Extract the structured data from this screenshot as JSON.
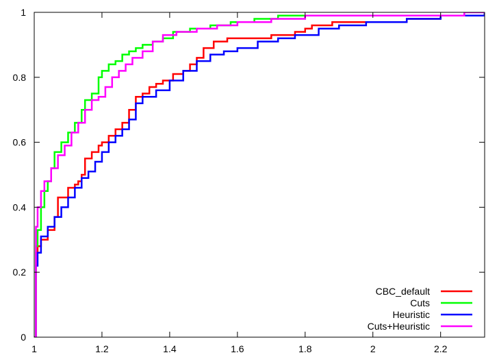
{
  "chart_data": {
    "type": "line",
    "title": "",
    "xlabel": "",
    "ylabel": "",
    "xlim": [
      1,
      2.33
    ],
    "ylim": [
      0,
      1
    ],
    "x_ticks": [
      "1",
      "1.2",
      "1.4",
      "1.6",
      "1.8",
      "2",
      "2.2"
    ],
    "y_ticks": [
      "0",
      "0.2",
      "0.4",
      "0.6",
      "0.8",
      "1"
    ],
    "grid": false,
    "legend_position": "bottom-right",
    "step": true,
    "series": [
      {
        "name": "CBC_default",
        "color": "#ff0000",
        "x": [
          1.0,
          1.005,
          1.01,
          1.02,
          1.04,
          1.06,
          1.07,
          1.1,
          1.12,
          1.13,
          1.14,
          1.15,
          1.17,
          1.19,
          1.2,
          1.22,
          1.24,
          1.26,
          1.28,
          1.3,
          1.32,
          1.34,
          1.36,
          1.38,
          1.41,
          1.44,
          1.46,
          1.48,
          1.5,
          1.53,
          1.57,
          1.62,
          1.7,
          1.77,
          1.8,
          1.82,
          1.84,
          1.88,
          2.0,
          2.1,
          2.2,
          2.33
        ],
        "y": [
          0.0,
          0.26,
          0.28,
          0.3,
          0.33,
          0.37,
          0.43,
          0.46,
          0.47,
          0.48,
          0.5,
          0.55,
          0.57,
          0.59,
          0.6,
          0.62,
          0.64,
          0.66,
          0.7,
          0.74,
          0.75,
          0.77,
          0.78,
          0.79,
          0.81,
          0.82,
          0.84,
          0.86,
          0.89,
          0.91,
          0.92,
          0.92,
          0.93,
          0.94,
          0.95,
          0.96,
          0.96,
          0.97,
          0.97,
          0.98,
          0.99,
          1.0
        ]
      },
      {
        "name": "Cuts",
        "color": "#00ff00",
        "x": [
          1.0,
          1.005,
          1.01,
          1.02,
          1.03,
          1.04,
          1.05,
          1.06,
          1.08,
          1.1,
          1.12,
          1.14,
          1.15,
          1.17,
          1.19,
          1.2,
          1.22,
          1.24,
          1.26,
          1.28,
          1.3,
          1.32,
          1.35,
          1.38,
          1.41,
          1.46,
          1.52,
          1.58,
          1.65,
          1.72,
          1.76,
          1.85,
          2.0,
          2.15,
          2.33
        ],
        "y": [
          0.0,
          0.28,
          0.33,
          0.4,
          0.45,
          0.48,
          0.52,
          0.57,
          0.6,
          0.63,
          0.66,
          0.7,
          0.73,
          0.75,
          0.8,
          0.82,
          0.84,
          0.85,
          0.87,
          0.88,
          0.89,
          0.9,
          0.91,
          0.92,
          0.94,
          0.95,
          0.96,
          0.97,
          0.98,
          0.99,
          0.99,
          0.99,
          0.99,
          0.99,
          1.0
        ]
      },
      {
        "name": "Heuristic",
        "color": "#0000ff",
        "x": [
          1.0,
          1.005,
          1.01,
          1.02,
          1.04,
          1.06,
          1.08,
          1.1,
          1.12,
          1.14,
          1.16,
          1.18,
          1.2,
          1.22,
          1.24,
          1.26,
          1.28,
          1.3,
          1.32,
          1.36,
          1.4,
          1.44,
          1.48,
          1.52,
          1.56,
          1.6,
          1.66,
          1.72,
          1.77,
          1.84,
          1.9,
          1.98,
          2.1,
          2.2,
          2.33
        ],
        "y": [
          0.0,
          0.22,
          0.26,
          0.31,
          0.34,
          0.37,
          0.4,
          0.43,
          0.46,
          0.49,
          0.51,
          0.54,
          0.57,
          0.6,
          0.62,
          0.64,
          0.67,
          0.72,
          0.74,
          0.76,
          0.79,
          0.82,
          0.85,
          0.87,
          0.88,
          0.89,
          0.91,
          0.92,
          0.93,
          0.95,
          0.96,
          0.97,
          0.98,
          0.99,
          1.0
        ]
      },
      {
        "name": "Cuts+Heuristic",
        "color": "#ff00ff",
        "x": [
          1.0,
          1.005,
          1.01,
          1.02,
          1.03,
          1.05,
          1.07,
          1.09,
          1.11,
          1.13,
          1.15,
          1.17,
          1.19,
          1.21,
          1.23,
          1.25,
          1.27,
          1.29,
          1.32,
          1.35,
          1.38,
          1.42,
          1.48,
          1.54,
          1.6,
          1.7,
          1.8,
          1.95,
          2.1,
          2.27,
          2.33
        ],
        "y": [
          0.0,
          0.34,
          0.4,
          0.45,
          0.48,
          0.52,
          0.56,
          0.59,
          0.63,
          0.66,
          0.7,
          0.73,
          0.74,
          0.77,
          0.8,
          0.82,
          0.84,
          0.86,
          0.88,
          0.91,
          0.93,
          0.94,
          0.95,
          0.96,
          0.97,
          0.98,
          0.99,
          0.99,
          0.99,
          1.0,
          1.0
        ]
      }
    ]
  }
}
